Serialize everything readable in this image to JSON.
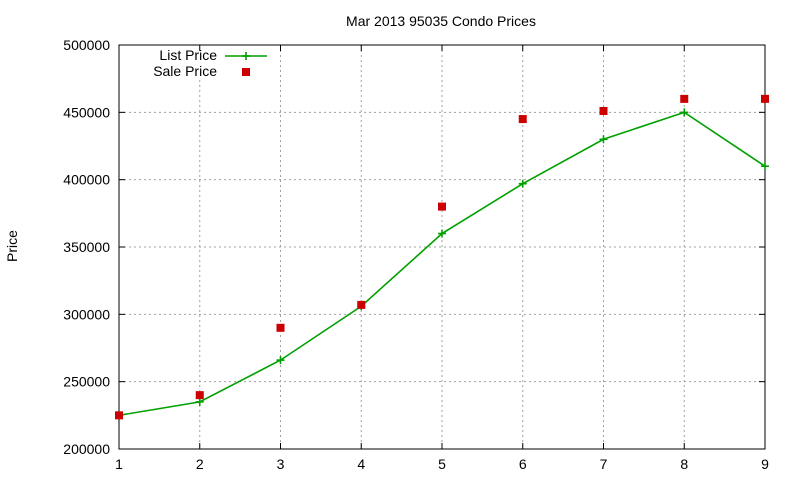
{
  "chart_data": {
    "type": "line",
    "title": "Mar 2013 95035 Condo Prices",
    "xlabel": "",
    "ylabel": "Price",
    "x": [
      1,
      2,
      3,
      4,
      5,
      6,
      7,
      8,
      9
    ],
    "xlim": [
      1,
      9
    ],
    "ylim": [
      200000,
      500000
    ],
    "xticks": [
      "1",
      "2",
      "3",
      "4",
      "5",
      "6",
      "7",
      "8",
      "9"
    ],
    "yticks": [
      "200000",
      "250000",
      "300000",
      "350000",
      "400000",
      "450000",
      "500000"
    ],
    "grid": true,
    "legend_position": "top-left",
    "series": [
      {
        "name": "List Price",
        "style": "line-with-plus-markers",
        "color": "#00a000",
        "values": [
          225000,
          235000,
          266000,
          306000,
          360000,
          397000,
          430000,
          450000,
          410000
        ]
      },
      {
        "name": "Sale Price",
        "style": "square-markers",
        "color": "#cc0000",
        "values": [
          225000,
          240000,
          290000,
          307000,
          380000,
          445000,
          451000,
          460000,
          460000
        ]
      }
    ]
  }
}
